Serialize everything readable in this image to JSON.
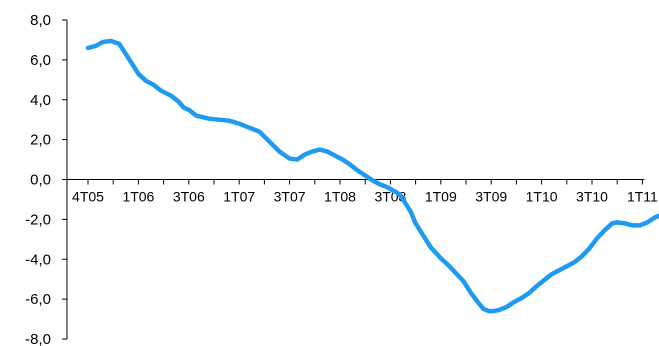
{
  "chart_data": {
    "type": "line",
    "title": "",
    "xlabel": "",
    "ylabel": "",
    "ylim": [
      -8,
      8
    ],
    "yticks": [
      "8,0",
      "6,0",
      "4,0",
      "2,0",
      "0,0",
      "-2,0",
      "-4,0",
      "-6,0",
      "-8,0"
    ],
    "ytick_values": [
      8,
      6,
      4,
      2,
      0,
      -2,
      -4,
      -6,
      -8
    ],
    "x_categories": [
      "4T05",
      "1T06",
      "3T06",
      "1T07",
      "3T07",
      "1T08",
      "3T08",
      "1T09",
      "3T09",
      "1T10",
      "3T10",
      "1T11"
    ],
    "grid": false,
    "legend": "none",
    "line_color": "#1E9BF0",
    "axis_color": "#000000",
    "series": [
      {
        "values": [
          [
            0.0,
            6.6
          ],
          [
            0.15,
            6.7
          ],
          [
            0.3,
            6.9
          ],
          [
            0.45,
            6.95
          ],
          [
            0.62,
            6.8
          ],
          [
            0.8,
            6.1
          ],
          [
            1.0,
            5.3
          ],
          [
            1.15,
            4.95
          ],
          [
            1.3,
            4.75
          ],
          [
            1.45,
            4.45
          ],
          [
            1.65,
            4.2
          ],
          [
            1.8,
            3.9
          ],
          [
            1.9,
            3.6
          ],
          [
            2.0,
            3.5
          ],
          [
            2.15,
            3.2
          ],
          [
            2.4,
            3.05
          ],
          [
            2.6,
            3.0
          ],
          [
            2.8,
            2.95
          ],
          [
            3.0,
            2.8
          ],
          [
            3.2,
            2.6
          ],
          [
            3.4,
            2.4
          ],
          [
            3.6,
            1.9
          ],
          [
            3.8,
            1.4
          ],
          [
            4.0,
            1.05
          ],
          [
            4.15,
            1.0
          ],
          [
            4.3,
            1.25
          ],
          [
            4.45,
            1.4
          ],
          [
            4.6,
            1.5
          ],
          [
            4.75,
            1.4
          ],
          [
            4.9,
            1.2
          ],
          [
            5.05,
            1.0
          ],
          [
            5.2,
            0.75
          ],
          [
            5.35,
            0.45
          ],
          [
            5.5,
            0.2
          ],
          [
            5.65,
            -0.05
          ],
          [
            5.8,
            -0.25
          ],
          [
            5.95,
            -0.4
          ],
          [
            6.05,
            -0.55
          ],
          [
            6.1,
            -0.6
          ],
          [
            6.2,
            -0.8
          ],
          [
            6.3,
            -1.2
          ],
          [
            6.4,
            -1.6
          ],
          [
            6.5,
            -2.2
          ],
          [
            6.65,
            -2.8
          ],
          [
            6.8,
            -3.4
          ],
          [
            7.0,
            -3.95
          ],
          [
            7.15,
            -4.3
          ],
          [
            7.3,
            -4.7
          ],
          [
            7.45,
            -5.1
          ],
          [
            7.6,
            -5.7
          ],
          [
            7.75,
            -6.2
          ],
          [
            7.85,
            -6.5
          ],
          [
            7.95,
            -6.6
          ],
          [
            8.05,
            -6.6
          ],
          [
            8.15,
            -6.55
          ],
          [
            8.3,
            -6.4
          ],
          [
            8.45,
            -6.15
          ],
          [
            8.6,
            -5.95
          ],
          [
            8.75,
            -5.7
          ],
          [
            8.9,
            -5.35
          ],
          [
            9.05,
            -5.05
          ],
          [
            9.2,
            -4.75
          ],
          [
            9.35,
            -4.55
          ],
          [
            9.5,
            -4.35
          ],
          [
            9.65,
            -4.15
          ],
          [
            9.8,
            -3.85
          ],
          [
            9.95,
            -3.45
          ],
          [
            10.1,
            -2.95
          ],
          [
            10.25,
            -2.55
          ],
          [
            10.4,
            -2.2
          ],
          [
            10.5,
            -2.15
          ],
          [
            10.65,
            -2.2
          ],
          [
            10.8,
            -2.3
          ],
          [
            10.95,
            -2.3
          ],
          [
            11.1,
            -2.15
          ],
          [
            11.25,
            -1.9
          ],
          [
            11.4,
            -1.75
          ],
          [
            11.55,
            -1.6
          ],
          [
            11.65,
            -1.55
          ],
          [
            11.75,
            -1.6
          ],
          [
            11.9,
            -1.65
          ],
          [
            12.1,
            -1.65
          ]
        ]
      }
    ]
  }
}
